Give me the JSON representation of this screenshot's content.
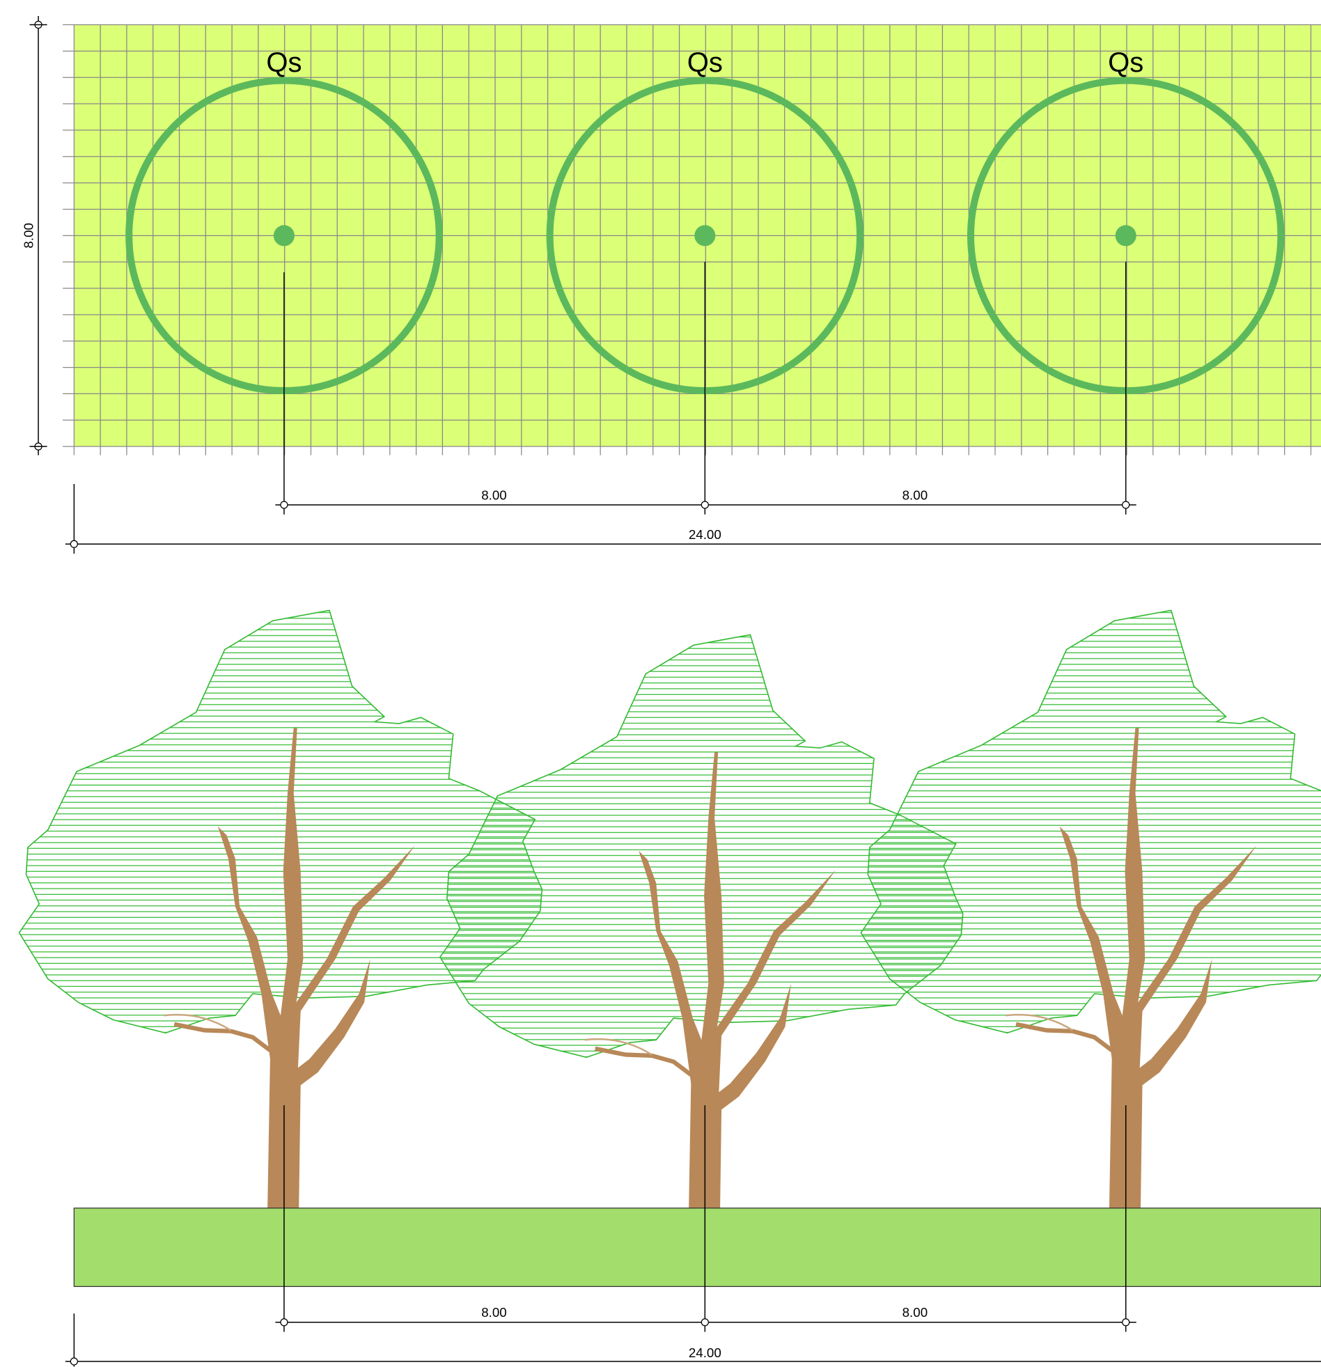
{
  "plan": {
    "trees": [
      {
        "label": "Qs"
      },
      {
        "label": "Qs"
      },
      {
        "label": "Qs"
      }
    ],
    "dimensions": {
      "spacing": [
        "8.00",
        "8.00"
      ],
      "total": "24.00",
      "height": "8.00"
    }
  },
  "elevation": {
    "dimensions": {
      "spacing": [
        "8.00",
        "8.00"
      ],
      "total": "24.00"
    }
  }
}
